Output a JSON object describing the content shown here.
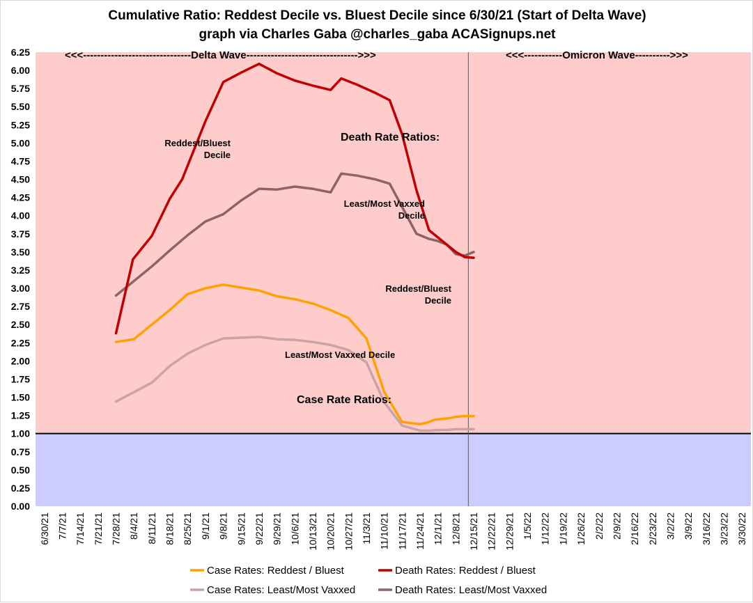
{
  "chart_data": {
    "type": "line",
    "title": "Cumulative Ratio: Reddest Decile vs. Bluest Decile since 6/30/21 (Start of Delta Wave)",
    "subtitle": "graph via Charles Gaba @charles_gaba ACASignups.net",
    "xlabel": "",
    "ylabel": "",
    "ylim": [
      0,
      6.25
    ],
    "ytick_step": 0.25,
    "y_ticks": [
      "0.00",
      "0.25",
      "0.50",
      "0.75",
      "1.00",
      "1.25",
      "1.50",
      "1.75",
      "2.00",
      "2.25",
      "2.50",
      "2.75",
      "3.00",
      "3.25",
      "3.50",
      "3.75",
      "4.00",
      "4.25",
      "4.50",
      "4.75",
      "5.00",
      "5.25",
      "5.50",
      "5.75",
      "6.00",
      "6.25"
    ],
    "categories": [
      "6/30/21",
      "7/7/21",
      "7/14/21",
      "7/21/21",
      "7/28/21",
      "8/4/21",
      "8/11/21",
      "8/18/21",
      "8/25/21",
      "9/1/21",
      "9/8/21",
      "9/15/21",
      "9/22/21",
      "9/29/21",
      "10/6/21",
      "10/13/21",
      "10/20/21",
      "10/27/21",
      "11/3/21",
      "11/10/21",
      "11/17/21",
      "11/24/21",
      "12/1/21",
      "12/8/21",
      "12/15/21",
      "12/22/21",
      "12/29/21",
      "1/5/22",
      "1/12/22",
      "1/19/22",
      "1/26/22",
      "2/2/22",
      "2/9/22",
      "2/16/22",
      "2/23/22",
      "3/2/22",
      "3/9/22",
      "3/16/22",
      "3/23/22",
      "3/30/22"
    ],
    "background_bands": [
      {
        "from": 1.0,
        "to": 6.25,
        "color": "#ffcccc"
      },
      {
        "from": 0.0,
        "to": 1.0,
        "color": "#ccccff"
      }
    ],
    "reference_line": {
      "y": 1.0,
      "color": "#000000"
    },
    "vertical_marker": {
      "x": 23.7,
      "color": "#595959"
    },
    "series": [
      {
        "name": "Case Rates: Reddest / Bluest",
        "color": "#ffa200",
        "points": [
          [
            4,
            2.26
          ],
          [
            5,
            2.3
          ],
          [
            6,
            2.5
          ],
          [
            7,
            2.7
          ],
          [
            8,
            2.92
          ],
          [
            9,
            3.0
          ],
          [
            10,
            3.05
          ],
          [
            11,
            3.01
          ],
          [
            12,
            2.97
          ],
          [
            13,
            2.89
          ],
          [
            14,
            2.85
          ],
          [
            15,
            2.79
          ],
          [
            16,
            2.7
          ],
          [
            17,
            2.59
          ],
          [
            18,
            2.31
          ],
          [
            19,
            1.57
          ],
          [
            20,
            1.16
          ],
          [
            21,
            1.13
          ],
          [
            21.4,
            1.15
          ],
          [
            21.8,
            1.19
          ],
          [
            22.2,
            1.2
          ],
          [
            22.6,
            1.21
          ],
          [
            23,
            1.23
          ],
          [
            23.4,
            1.24
          ],
          [
            24,
            1.24
          ]
        ]
      },
      {
        "name": "Death Rates: Reddest / Bluest",
        "color": "#c00000",
        "points": [
          [
            4,
            2.38
          ],
          [
            4.95,
            3.4
          ],
          [
            6,
            3.72
          ],
          [
            7,
            4.23
          ],
          [
            7.7,
            4.5
          ],
          [
            9,
            5.3
          ],
          [
            10,
            5.84
          ],
          [
            11,
            5.97
          ],
          [
            12,
            6.09
          ],
          [
            13,
            5.96
          ],
          [
            14,
            5.86
          ],
          [
            15,
            5.79
          ],
          [
            16,
            5.73
          ],
          [
            16.6,
            5.89
          ],
          [
            17.5,
            5.8
          ],
          [
            18.5,
            5.69
          ],
          [
            19.3,
            5.59
          ],
          [
            20,
            5.12
          ],
          [
            20.8,
            4.35
          ],
          [
            21.5,
            3.8
          ],
          [
            22,
            3.7
          ],
          [
            22.5,
            3.6
          ],
          [
            23,
            3.5
          ],
          [
            23.5,
            3.43
          ],
          [
            24,
            3.42
          ]
        ]
      },
      {
        "name": "Case Rates: Least/Most Vaxxed",
        "color": "#c9a3a6",
        "points": [
          [
            4,
            1.44
          ],
          [
            5,
            1.57
          ],
          [
            6,
            1.7
          ],
          [
            7,
            1.93
          ],
          [
            8,
            2.1
          ],
          [
            9,
            2.22
          ],
          [
            10,
            2.31
          ],
          [
            11,
            2.32
          ],
          [
            12,
            2.33
          ],
          [
            13,
            2.3
          ],
          [
            14,
            2.29
          ],
          [
            15,
            2.26
          ],
          [
            16,
            2.22
          ],
          [
            17,
            2.15
          ],
          [
            18,
            1.98
          ],
          [
            19,
            1.43
          ],
          [
            20,
            1.11
          ],
          [
            21,
            1.04
          ],
          [
            21.5,
            1.04
          ],
          [
            22,
            1.05
          ],
          [
            22.5,
            1.05
          ],
          [
            23,
            1.06
          ],
          [
            23.5,
            1.06
          ],
          [
            24,
            1.06
          ]
        ]
      },
      {
        "name": "Death Rates: Least/Most Vaxxed",
        "color": "#8c6464",
        "points": [
          [
            4,
            2.9
          ],
          [
            5,
            3.1
          ],
          [
            6,
            3.3
          ],
          [
            7,
            3.52
          ],
          [
            8,
            3.73
          ],
          [
            9,
            3.92
          ],
          [
            10,
            4.02
          ],
          [
            11,
            4.21
          ],
          [
            12,
            4.37
          ],
          [
            13,
            4.36
          ],
          [
            14,
            4.4
          ],
          [
            15,
            4.37
          ],
          [
            16,
            4.32
          ],
          [
            16.6,
            4.58
          ],
          [
            17.5,
            4.55
          ],
          [
            18.5,
            4.5
          ],
          [
            19.3,
            4.44
          ],
          [
            20,
            4.12
          ],
          [
            20.8,
            3.75
          ],
          [
            21.5,
            3.68
          ],
          [
            22,
            3.65
          ],
          [
            22.5,
            3.6
          ],
          [
            23,
            3.47
          ],
          [
            23.5,
            3.45
          ],
          [
            24,
            3.5
          ]
        ]
      }
    ],
    "annotations": {
      "delta_wave": "<<<-------------------------------Delta Wave-------------------------------->>>",
      "omicron_wave": "<<<-----------Omicron Wave---------->>>",
      "death_rate_ratios": "Death Rate Ratios:",
      "case_rate_ratios": "Case Rate Ratios:",
      "death_reddest_line1": "Reddest/Bluest",
      "death_reddest_line2": "Decile",
      "death_vaxxed_line1": "Least/Most Vaxxed",
      "death_vaxxed_line2": "Decile",
      "case_reddest_line1": "Reddest/Bluest",
      "case_reddest_line2": "Decile",
      "case_vaxxed": "Least/Most Vaxxed Decile"
    },
    "legend": {
      "position": "bottom",
      "entries": [
        {
          "label": "Case Rates: Reddest / Bluest",
          "color": "#ffa200"
        },
        {
          "label": "Death Rates: Reddest / Bluest",
          "color": "#c00000"
        },
        {
          "label": "Case Rates: Least/Most Vaxxed",
          "color": "#c9a3a6"
        },
        {
          "label": "Death Rates: Least/Most Vaxxed",
          "color": "#8c6464"
        }
      ]
    }
  }
}
